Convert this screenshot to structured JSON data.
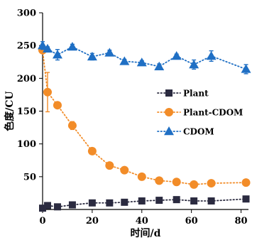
{
  "chart_data": {
    "type": "line",
    "xlabel": "时间/d",
    "ylabel": "色度/CU",
    "xlim": [
      0,
      83
    ],
    "ylim": [
      0,
      300
    ],
    "xticks": [
      0,
      20,
      40,
      60,
      80
    ],
    "yticks": [
      50,
      100,
      150,
      200,
      250,
      300
    ],
    "grid": false,
    "legend_position": "right",
    "series": [
      {
        "name": "Plant",
        "color": "#2b2b40",
        "marker": "square",
        "x": [
          0,
          2,
          6,
          12,
          20,
          27,
          33,
          40,
          47,
          54,
          61,
          68,
          82
        ],
        "y": [
          2,
          6,
          4,
          7,
          10,
          10,
          11,
          13,
          14,
          15,
          13,
          13,
          16
        ],
        "yerr": [
          1,
          2,
          1,
          1,
          1,
          1,
          1,
          1,
          1,
          1,
          1,
          1,
          1
        ]
      },
      {
        "name": "Plant-CDOM",
        "color": "#f28c28",
        "marker": "circle",
        "x": [
          0,
          2,
          6,
          12,
          20,
          27,
          33,
          40,
          47,
          54,
          61,
          68,
          82
        ],
        "y": [
          243,
          179,
          159,
          128,
          89,
          67,
          60,
          50,
          44,
          42,
          38,
          40,
          41
        ],
        "yerr": [
          3,
          30,
          3,
          6,
          3,
          3,
          2,
          2,
          2,
          2,
          2,
          2,
          2
        ]
      },
      {
        "name": "CDOM",
        "color": "#1f6fc4",
        "marker": "triangle",
        "x": [
          0,
          2,
          6,
          12,
          20,
          27,
          33,
          40,
          47,
          54,
          61,
          68,
          82
        ],
        "y": [
          250,
          245,
          236,
          248,
          233,
          239,
          226,
          224,
          218,
          234,
          221,
          234,
          214
        ],
        "yerr": [
          6,
          3,
          8,
          4,
          5,
          4,
          3,
          3,
          4,
          3,
          7,
          8,
          7
        ]
      }
    ]
  }
}
